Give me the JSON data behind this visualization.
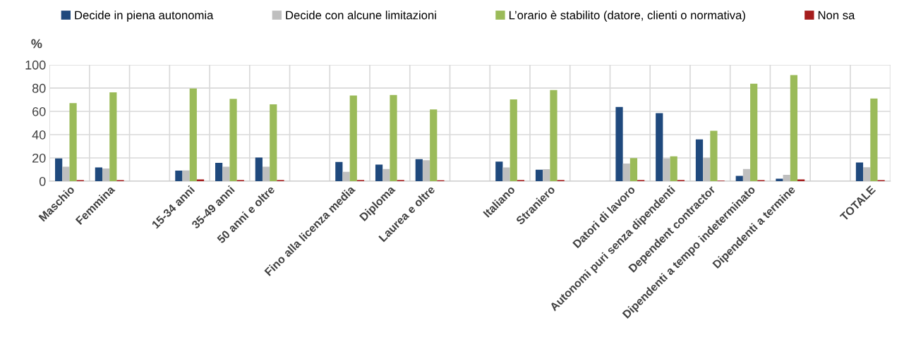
{
  "chart_data": {
    "type": "bar",
    "ylabel": "%",
    "categories": [
      "Maschio",
      "Femmina",
      null,
      "15-34 anni",
      "35-49 anni",
      "50 anni e oltre",
      null,
      "Fino alla licenza media",
      "Diploma",
      "Laurea e oltre",
      null,
      "Italiano",
      "Straniero",
      null,
      "Datori di lavoro",
      "Autonomi puri senza dipendenti",
      "Dependent contractor",
      "Dipendenti a tempo indeterminato",
      "Dipendenti a termine",
      null,
      "TOTALE"
    ],
    "series": [
      {
        "name": "Decide in piena autonomia",
        "color": "#1f497d",
        "values": [
          19.5,
          11.8,
          null,
          9.1,
          15.8,
          20.3,
          null,
          16.6,
          14.2,
          18.9,
          null,
          16.8,
          9.9,
          null,
          63.7,
          58.4,
          35.9,
          4.5,
          2.2,
          null,
          16
        ]
      },
      {
        "name": "Decide con alcune limitazioni",
        "color": "#bfbfbf",
        "values": [
          12.4,
          11,
          null,
          9.3,
          12.4,
          12.4,
          null,
          8.1,
          10.5,
          18.1,
          null,
          11.8,
          10.3,
          null,
          15.2,
          19.5,
          20.1,
          10.5,
          5.5,
          null,
          12
        ]
      },
      {
        "name": "L’orario è stabilito (datore, clienti o normativa)",
        "color": "#9bbb59",
        "values": [
          67.1,
          76.3,
          null,
          79.7,
          70.8,
          66.1,
          null,
          73.6,
          74,
          61.7,
          null,
          70.2,
          78.3,
          null,
          19.9,
          21.3,
          43.4,
          83.8,
          91.1,
          null,
          71
        ]
      },
      {
        "name": "Non sa",
        "color": "#a51d1d",
        "values": [
          1,
          1,
          null,
          1.5,
          1,
          1,
          null,
          1,
          1,
          0.8,
          null,
          1,
          1,
          null,
          1,
          1,
          0.5,
          1,
          1.5,
          null,
          1
        ]
      }
    ],
    "ylim": [
      0,
      100
    ],
    "yticks": [
      0,
      20,
      40,
      60,
      80,
      100
    ],
    "grid": true,
    "legend": "top"
  }
}
